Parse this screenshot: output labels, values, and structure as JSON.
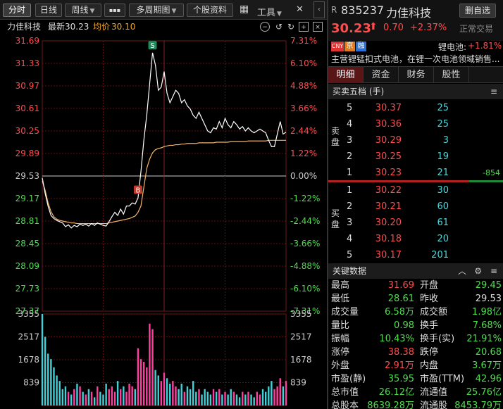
{
  "toolbar": {
    "tabs": [
      "分时",
      "日线",
      "周线",
      "▪▪▪",
      "多周期图",
      "个股资料"
    ],
    "grid_icon": "▦",
    "tools": "工具",
    "close": "✕"
  },
  "quote": {
    "name": "力佳科技",
    "latest_label": "最新",
    "latest": "30.23",
    "avg_label": "均价",
    "avg": "30.10"
  },
  "right": {
    "prefix": "R",
    "code": "835237",
    "name": "力佳科技",
    "fav": "删自选",
    "price": "30.23",
    "change": "0.70",
    "pct": "+2.37%",
    "status": "正常交易",
    "badges": [
      "CNY",
      "京",
      "融"
    ],
    "sector": "锂电池:",
    "sector_pct": "+1.81%",
    "business": "主营锂锰扣式电池，在锂一次电池领域销售...",
    "tabs": [
      "明细",
      "资金",
      "财务",
      "股性"
    ],
    "ob_title": "买卖五档 (手)",
    "sell_label": "卖盘",
    "buy_label": "买盘",
    "sells": [
      {
        "n": "5",
        "p": "30.37",
        "v": "25"
      },
      {
        "n": "4",
        "p": "30.36",
        "v": "25"
      },
      {
        "n": "3",
        "p": "30.29",
        "v": "3"
      },
      {
        "n": "2",
        "p": "30.25",
        "v": "19"
      },
      {
        "n": "1",
        "p": "30.23",
        "v": "21",
        "x": "-854"
      }
    ],
    "buys": [
      {
        "n": "1",
        "p": "30.22",
        "v": "30"
      },
      {
        "n": "2",
        "p": "30.21",
        "v": "60"
      },
      {
        "n": "3",
        "p": "30.20",
        "v": "61"
      },
      {
        "n": "4",
        "p": "30.18",
        "v": "20"
      },
      {
        "n": "5",
        "p": "30.17",
        "v": "201"
      }
    ],
    "kd_title": "关键数据",
    "kd": [
      {
        "l": "最高",
        "v": "31.69",
        "c": "red",
        "l2": "开盘",
        "v2": "29.45",
        "c2": "grn"
      },
      {
        "l": "最低",
        "v": "28.61",
        "c": "grn",
        "l2": "昨收",
        "v2": "29.53",
        "c2": "wht"
      },
      {
        "l": "成交量",
        "v": "6.58万",
        "c": "grn",
        "l2": "成交额",
        "v2": "1.98亿",
        "c2": "grn"
      },
      {
        "l": "量比",
        "v": "0.98",
        "c": "grn",
        "l2": "换手",
        "v2": "7.68%",
        "c2": "grn"
      },
      {
        "l": "振幅",
        "v": "10.43%",
        "c": "grn",
        "l2": "换手(实)",
        "v2": "21.91%",
        "c2": "grn"
      },
      {
        "l": "涨停",
        "v": "38.38",
        "c": "red",
        "l2": "跌停",
        "v2": "20.68",
        "c2": "grn"
      },
      {
        "l": "外盘",
        "v": "2.91万",
        "c": "red",
        "l2": "内盘",
        "v2": "3.67万",
        "c2": "grn"
      },
      {
        "l": "市盈(静)",
        "v": "35.95",
        "c": "grn",
        "l2": "市盈(TTM)",
        "v2": "42.96",
        "c2": "grn"
      },
      {
        "l": "总市值",
        "v": "26.12亿",
        "c": "grn",
        "l2": "流通值",
        "v2": "25.76亿",
        "c2": "grn"
      },
      {
        "l": "总股本",
        "v": "8639.28万",
        "c": "grn",
        "l2": "流通股",
        "v2": "8453.79万",
        "c2": "grn"
      }
    ]
  },
  "chart_data": {
    "type": "line",
    "prev_close": 29.53,
    "ylim": [
      27.37,
      31.69
    ],
    "price_ticks": [
      "31.69",
      "31.33",
      "30.97",
      "30.61",
      "30.25",
      "29.89",
      "29.53",
      "29.17",
      "28.81",
      "28.45",
      "28.09",
      "27.73",
      "27.37"
    ],
    "pct_ticks": [
      "7.31%",
      "6.10%",
      "4.88%",
      "3.66%",
      "2.44%",
      "1.22%",
      "0.00%",
      "-1.22%",
      "-2.44%",
      "-3.66%",
      "-4.88%",
      "-6.10%",
      "-7.31%"
    ],
    "vol_ticks": [
      "3355",
      "2517",
      "1678",
      "839"
    ],
    "vol_max": 3355,
    "markers": [
      {
        "label": "B",
        "idx": 33,
        "price": 29.31
      },
      {
        "label": "S",
        "idx": 38,
        "price": 31.62
      }
    ],
    "series": [
      {
        "values": [
          29.5,
          29.25,
          29.05,
          28.9,
          28.85,
          28.82,
          28.8,
          28.78,
          28.72,
          28.75,
          28.7,
          28.74,
          28.72,
          28.76,
          28.74,
          28.76,
          28.73,
          28.77,
          28.74,
          28.78,
          28.76,
          28.74,
          28.73,
          28.8,
          28.88,
          28.95,
          28.9,
          29.0,
          28.92,
          29.05,
          29.05,
          29.1,
          29.08,
          29.18,
          29.6,
          30.1,
          30.5,
          31.0,
          31.5,
          31.3,
          30.9,
          30.95,
          31.2,
          30.85,
          30.7,
          30.8,
          30.9,
          30.85,
          30.7,
          30.75,
          30.65,
          30.6,
          30.5,
          30.45,
          30.55,
          30.45,
          30.35,
          30.25,
          30.22,
          30.3,
          30.28,
          30.4,
          30.3,
          30.45,
          30.35,
          30.3,
          30.4,
          30.35,
          30.28,
          30.32,
          30.25,
          30.3,
          30.25,
          30.22,
          30.25,
          30.28,
          30.25,
          30.22,
          30.1,
          30.0,
          30.0,
          30.2,
          30.4,
          30.2,
          30.23
        ]
      },
      {
        "values": [
          29.45,
          29.3,
          29.1,
          28.96,
          28.88,
          28.84,
          28.82,
          28.81,
          28.8,
          28.79,
          28.78,
          28.78,
          28.77,
          28.77,
          28.77,
          28.77,
          28.77,
          28.77,
          28.77,
          28.77,
          28.77,
          28.77,
          28.77,
          28.78,
          28.79,
          28.8,
          28.81,
          28.82,
          28.83,
          28.84,
          28.85,
          28.87,
          28.89,
          28.95,
          29.05,
          29.35,
          29.65,
          29.8,
          29.9,
          29.95,
          29.97,
          29.98,
          30.0,
          30.01,
          30.02,
          30.02,
          30.03,
          30.03,
          30.04,
          30.04,
          30.05,
          30.05,
          30.05,
          30.05,
          30.06,
          30.06,
          30.06,
          30.06,
          30.06,
          30.06,
          30.07,
          30.07,
          30.07,
          30.07,
          30.07,
          30.08,
          30.08,
          30.08,
          30.08,
          30.08,
          30.08,
          30.09,
          30.09,
          30.09,
          30.09,
          30.09,
          30.09,
          30.09,
          30.1,
          30.1,
          30.1,
          30.1,
          30.1,
          30.1,
          30.1
        ]
      }
    ],
    "volumes": [
      3355,
      2517,
      1900,
      1700,
      1400,
      1100,
      900,
      600,
      700,
      500,
      400,
      600,
      800,
      700,
      500,
      400,
      600,
      500,
      300,
      700,
      500,
      400,
      800,
      600,
      700,
      500,
      900,
      600,
      700,
      500,
      800,
      700,
      600,
      2100,
      1700,
      1600,
      1400,
      3000,
      2800,
      1300,
      1100,
      900,
      1200,
      1000,
      800,
      900,
      700,
      600,
      800,
      500,
      700,
      600,
      900,
      500,
      600,
      400,
      600,
      500,
      400,
      600,
      500,
      600,
      400,
      500,
      400,
      600,
      500,
      400,
      300,
      500,
      400,
      500,
      400,
      300,
      500,
      400,
      600,
      500,
      700,
      900,
      600,
      700,
      1000,
      700,
      900
    ]
  }
}
